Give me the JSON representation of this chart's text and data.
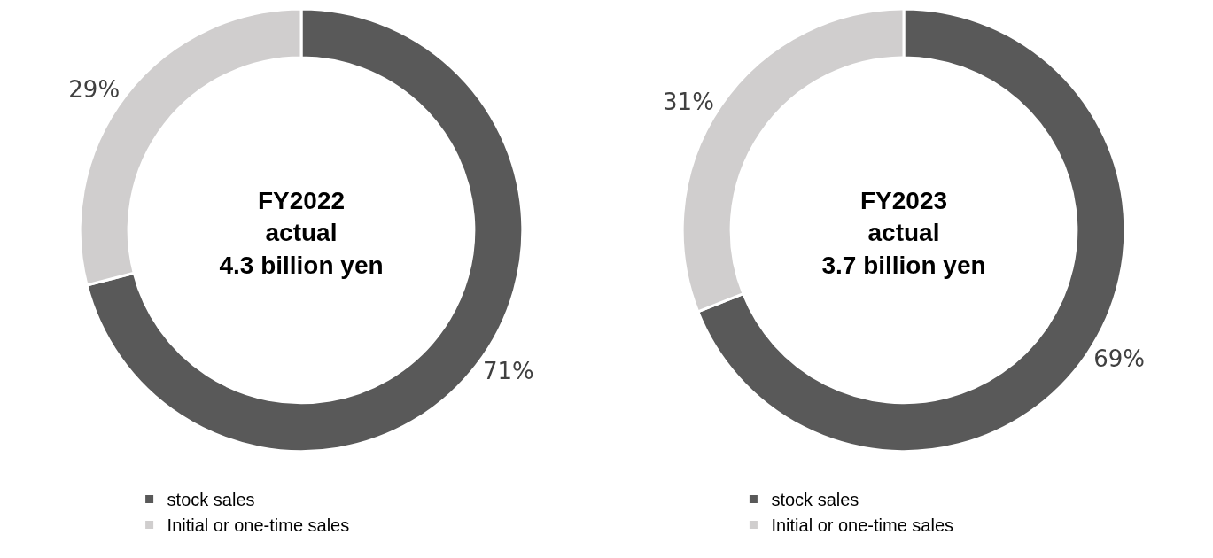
{
  "chart_data": [
    {
      "type": "donut",
      "title": "FY2022\nactual\n4.3 billion yen",
      "categories": [
        "stock sales",
        "Initial or one-time sales"
      ],
      "values": [
        71,
        29
      ],
      "value_labels": [
        "71%",
        "29%"
      ],
      "colors": [
        "#595959",
        "#d0cece"
      ],
      "legend": "bottom"
    },
    {
      "type": "donut",
      "title": "FY2023\nactual\n3.7 billion yen",
      "categories": [
        "stock sales",
        "Initial or one-time sales"
      ],
      "values": [
        69,
        31
      ],
      "value_labels": [
        "69%",
        "31%"
      ],
      "colors": [
        "#595959",
        "#d0cece"
      ],
      "legend": "bottom"
    }
  ]
}
